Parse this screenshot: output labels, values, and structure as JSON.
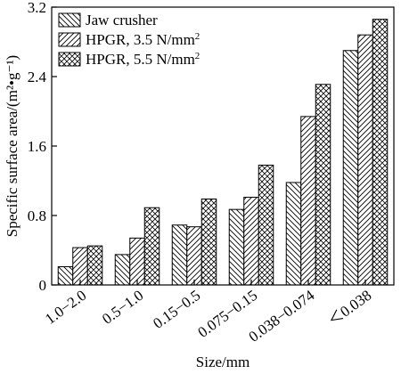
{
  "chart_data": {
    "type": "bar",
    "xlabel": "Size/mm",
    "ylabel": "Specific surface area/(m²•g⁻¹)",
    "ylim": [
      0,
      3.2
    ],
    "yticks": [
      0,
      0.8,
      1.6,
      2.4,
      3.2
    ],
    "ytick_labels": [
      "0",
      "0.8",
      "1.6",
      "2.4",
      "3.2"
    ],
    "grid": false,
    "legend_position": "top-left",
    "categories": [
      "1.0−2.0",
      "0.5−1.0",
      "0.15−0.5",
      "0.075−0.15",
      "0.038−0.074",
      "＜0.038"
    ],
    "series": [
      {
        "name": "Jaw crusher",
        "name_sup": "",
        "pattern": "back-diagonal",
        "values": [
          0.21,
          0.35,
          0.69,
          0.87,
          1.18,
          2.7
        ]
      },
      {
        "name": "HPGR, 3.5 N/mm",
        "name_sup": "2",
        "pattern": "forward-diagonal",
        "values": [
          0.43,
          0.54,
          0.67,
          1.01,
          1.94,
          2.88
        ]
      },
      {
        "name": "HPGR, 5.5 N/mm",
        "name_sup": "2",
        "pattern": "cross-hatch",
        "values": [
          0.45,
          0.89,
          0.99,
          1.38,
          2.31,
          3.06
        ]
      }
    ]
  }
}
